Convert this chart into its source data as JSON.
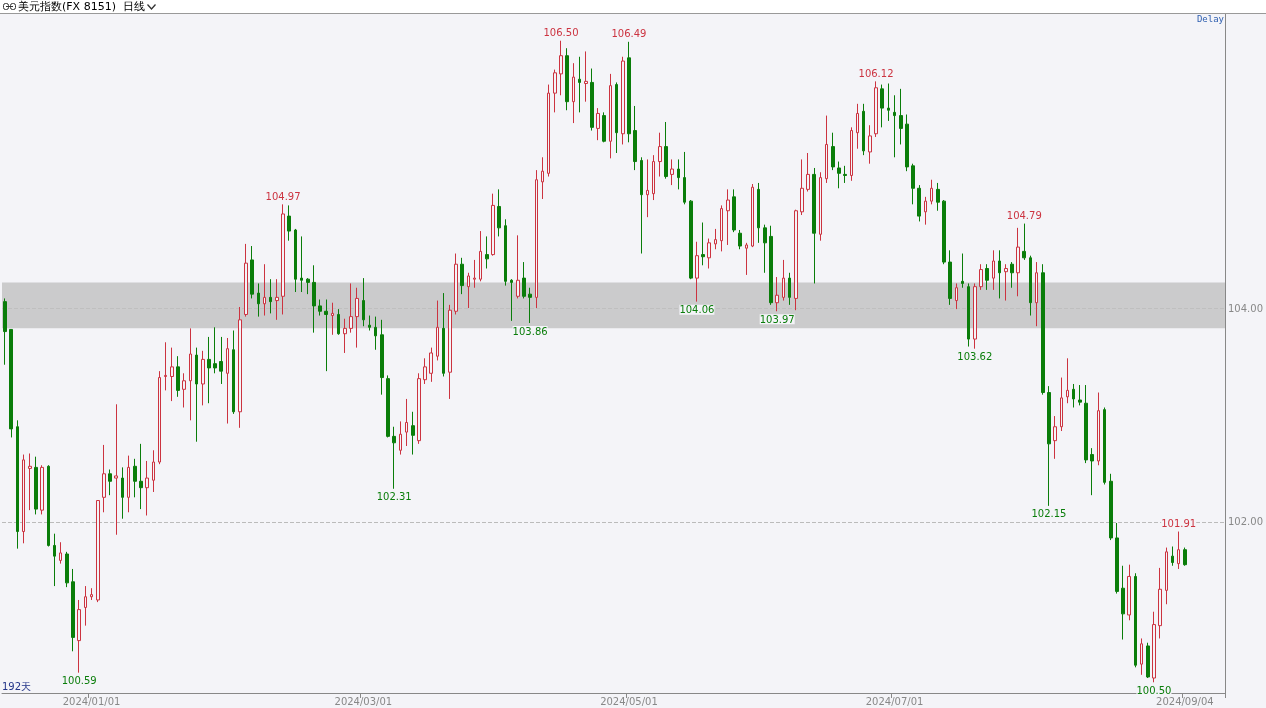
{
  "chart_data": {
    "type": "candlestick",
    "title": "美元指数(FX 8151)  日线",
    "categories": [
      null,
      null,
      null,
      null,
      null,
      null,
      null,
      null,
      null,
      null,
      null,
      null,
      null,
      null,
      "2024/01/01",
      null,
      null,
      null,
      null,
      null,
      null,
      null,
      null,
      null,
      null,
      null,
      null,
      null,
      null,
      null,
      null,
      null,
      null,
      null,
      null,
      null,
      null,
      null,
      null,
      null,
      null,
      null,
      null,
      null,
      null,
      null,
      null,
      null,
      null,
      null,
      null,
      null,
      null,
      null,
      null,
      null,
      null,
      null,
      "2024/03/01",
      null,
      null,
      null,
      null,
      null,
      null,
      null,
      null,
      null,
      null,
      null,
      null,
      null,
      null,
      null,
      null,
      null,
      null,
      null,
      null,
      null,
      null,
      null,
      null,
      null,
      null,
      null,
      null,
      null,
      null,
      null,
      null,
      null,
      null,
      null,
      null,
      null,
      null,
      null,
      null,
      null,
      null,
      "2024/05/01",
      null,
      null,
      null,
      null,
      null,
      null,
      null,
      null,
      null,
      null,
      null,
      null,
      null,
      null,
      null,
      null,
      null,
      null,
      null,
      null,
      null,
      null,
      null,
      null,
      null,
      null,
      null,
      null,
      null,
      null,
      null,
      null,
      null,
      null,
      null,
      null,
      null,
      null,
      null,
      null,
      null,
      null,
      "2024/07/01",
      null,
      null,
      null,
      null,
      null,
      null,
      null,
      null,
      null,
      null,
      null,
      null,
      null,
      null,
      null,
      null,
      null,
      null,
      null,
      null,
      null,
      null,
      null,
      null,
      null,
      null,
      null,
      null,
      null,
      null,
      null,
      null,
      null,
      null,
      null,
      null,
      null,
      null,
      null,
      null,
      null,
      null,
      null,
      null,
      null,
      null,
      "2024/09/04"
    ],
    "ohlc": [
      [
        104.06,
        104.09,
        103.47,
        103.78
      ],
      [
        103.8,
        103.8,
        102.79,
        102.87
      ],
      [
        102.89,
        102.95,
        101.75,
        101.91
      ],
      [
        101.91,
        102.63,
        101.8,
        102.58
      ],
      [
        102.5,
        102.64,
        102.11,
        102.52
      ],
      [
        102.51,
        102.61,
        102.07,
        102.12
      ],
      [
        102.11,
        102.53,
        102.07,
        102.51
      ],
      [
        102.52,
        102.53,
        101.77,
        101.78
      ],
      [
        101.78,
        101.89,
        101.4,
        101.68
      ],
      [
        101.64,
        101.81,
        101.61,
        101.71
      ],
      [
        101.7,
        101.72,
        101.39,
        101.43
      ],
      [
        101.44,
        101.56,
        100.79,
        100.92
      ],
      [
        100.89,
        101.27,
        100.59,
        101.18
      ],
      [
        101.2,
        101.4,
        101.03,
        101.3
      ],
      [
        101.3,
        101.38,
        101.27,
        101.32
      ],
      [
        101.27,
        102.2,
        101.25,
        102.2
      ],
      [
        102.23,
        102.72,
        102.09,
        102.45
      ],
      [
        102.45,
        102.49,
        102.25,
        102.38
      ],
      [
        102.41,
        103.1,
        101.88,
        102.43
      ],
      [
        102.41,
        102.51,
        102.03,
        102.23
      ],
      [
        102.23,
        102.62,
        102.09,
        102.51
      ],
      [
        102.52,
        102.59,
        102.23,
        102.38
      ],
      [
        102.38,
        102.73,
        102.12,
        102.32
      ],
      [
        102.32,
        102.57,
        102.06,
        102.41
      ],
      [
        102.39,
        102.67,
        102.28,
        102.56
      ],
      [
        102.56,
        103.41,
        102.54,
        103.35
      ],
      [
        103.36,
        103.68,
        103.23,
        103.37
      ],
      [
        103.36,
        103.63,
        103.13,
        103.45
      ],
      [
        103.45,
        103.55,
        103.17,
        103.23
      ],
      [
        103.24,
        103.39,
        103.07,
        103.32
      ],
      [
        103.32,
        103.81,
        102.95,
        103.57
      ],
      [
        103.56,
        103.63,
        102.75,
        103.29
      ],
      [
        103.29,
        103.6,
        103.09,
        103.52
      ],
      [
        103.52,
        103.73,
        103.11,
        103.44
      ],
      [
        103.48,
        103.82,
        103.39,
        103.44
      ],
      [
        103.5,
        103.73,
        103.29,
        103.41
      ],
      [
        103.39,
        103.72,
        102.92,
        103.62
      ],
      [
        103.61,
        103.79,
        103.01,
        103.03
      ],
      [
        103.03,
        104.01,
        102.88,
        103.89
      ],
      [
        103.94,
        104.6,
        103.92,
        104.42
      ],
      [
        104.45,
        104.58,
        104.09,
        104.13
      ],
      [
        104.14,
        104.23,
        103.92,
        104.04
      ],
      [
        104.04,
        104.41,
        103.93,
        104.1
      ],
      [
        104.1,
        104.27,
        103.95,
        104.06
      ],
      [
        104.07,
        104.27,
        103.89,
        104.1
      ],
      [
        104.11,
        104.97,
        103.94,
        104.88
      ],
      [
        104.86,
        104.96,
        104.63,
        104.72
      ],
      [
        104.73,
        104.74,
        104.15,
        104.27
      ],
      [
        104.28,
        104.67,
        104.15,
        104.26
      ],
      [
        104.27,
        104.28,
        104.13,
        104.24
      ],
      [
        104.24,
        104.4,
        103.77,
        104.02
      ],
      [
        104.02,
        104.08,
        103.93,
        103.97
      ],
      [
        103.97,
        104.08,
        103.41,
        103.94
      ],
      [
        103.93,
        104.05,
        103.75,
        103.95
      ],
      [
        103.94,
        103.99,
        103.75,
        103.76
      ],
      [
        103.76,
        103.9,
        103.58,
        103.81
      ],
      [
        103.81,
        104.23,
        103.77,
        103.92
      ],
      [
        103.92,
        104.19,
        103.63,
        104.09
      ],
      [
        104.07,
        104.28,
        103.83,
        103.89
      ],
      [
        103.84,
        103.93,
        103.79,
        103.82
      ],
      [
        103.82,
        103.92,
        103.61,
        103.74
      ],
      [
        103.75,
        103.89,
        103.19,
        103.35
      ],
      [
        103.34,
        103.37,
        102.79,
        102.8
      ],
      [
        102.8,
        102.89,
        102.31,
        102.74
      ],
      [
        102.67,
        102.94,
        102.63,
        102.82
      ],
      [
        102.84,
        103.15,
        102.71,
        102.93
      ],
      [
        102.9,
        103.03,
        102.63,
        102.81
      ],
      [
        102.76,
        103.39,
        102.73,
        103.34
      ],
      [
        103.33,
        103.53,
        103.29,
        103.45
      ],
      [
        103.39,
        103.63,
        103.31,
        103.58
      ],
      [
        103.55,
        104.07,
        103.51,
        103.82
      ],
      [
        103.81,
        104.14,
        103.36,
        103.39
      ],
      [
        103.4,
        104.03,
        103.15,
        103.98
      ],
      [
        103.97,
        104.51,
        103.94,
        104.41
      ],
      [
        104.41,
        104.47,
        104.13,
        104.21
      ],
      [
        104.2,
        104.33,
        104.0,
        104.3
      ],
      [
        104.27,
        104.45,
        104.19,
        104.28
      ],
      [
        104.27,
        104.72,
        104.25,
        104.53
      ],
      [
        104.5,
        104.67,
        104.37,
        104.46
      ],
      [
        104.5,
        105.07,
        104.49,
        104.96
      ],
      [
        104.95,
        105.11,
        104.67,
        104.75
      ],
      [
        104.77,
        104.83,
        104.21,
        104.25
      ],
      [
        104.26,
        104.27,
        103.88,
        104.24
      ],
      [
        104.11,
        104.68,
        104.09,
        104.26
      ],
      [
        104.28,
        104.43,
        104.09,
        104.11
      ],
      [
        104.13,
        104.19,
        103.86,
        104.1
      ],
      [
        104.1,
        105.29,
        104.0,
        105.2
      ],
      [
        105.18,
        105.41,
        105.02,
        105.28
      ],
      [
        105.26,
        106.09,
        105.23,
        106.01
      ],
      [
        106.01,
        106.23,
        105.83,
        106.2
      ],
      [
        106.19,
        106.5,
        105.99,
        106.36
      ],
      [
        106.36,
        106.43,
        105.85,
        105.93
      ],
      [
        105.93,
        106.29,
        105.73,
        106.16
      ],
      [
        106.14,
        106.35,
        105.83,
        106.11
      ],
      [
        106.1,
        106.4,
        105.93,
        106.12
      ],
      [
        106.11,
        106.24,
        105.66,
        105.69
      ],
      [
        105.68,
        105.87,
        105.57,
        105.82
      ],
      [
        105.8,
        105.83,
        105.55,
        105.56
      ],
      [
        105.56,
        106.19,
        105.4,
        106.08
      ],
      [
        106.09,
        106.11,
        105.45,
        105.64
      ],
      [
        105.63,
        106.35,
        105.53,
        106.31
      ],
      [
        106.34,
        106.49,
        105.55,
        105.63
      ],
      [
        105.66,
        105.89,
        105.29,
        105.37
      ],
      [
        105.38,
        105.41,
        104.51,
        105.06
      ],
      [
        105.06,
        105.39,
        104.85,
        105.1
      ],
      [
        105.07,
        105.43,
        105.01,
        105.37
      ],
      [
        105.37,
        105.64,
        105.23,
        105.51
      ],
      [
        105.51,
        105.74,
        105.21,
        105.23
      ],
      [
        105.25,
        105.39,
        105.15,
        105.3
      ],
      [
        105.3,
        105.39,
        105.11,
        105.22
      ],
      [
        105.22,
        105.46,
        104.97,
        104.99
      ],
      [
        105.0,
        105.01,
        104.27,
        104.28
      ],
      [
        104.28,
        104.62,
        104.06,
        104.49
      ],
      [
        104.5,
        104.8,
        104.4,
        104.48
      ],
      [
        104.47,
        104.65,
        104.37,
        104.61
      ],
      [
        104.6,
        104.74,
        104.55,
        104.64
      ],
      [
        104.63,
        104.96,
        104.53,
        104.93
      ],
      [
        104.91,
        105.11,
        104.59,
        105.01
      ],
      [
        105.04,
        105.11,
        104.71,
        104.73
      ],
      [
        104.7,
        104.73,
        104.55,
        104.58
      ],
      [
        104.56,
        104.61,
        104.31,
        104.59
      ],
      [
        104.58,
        105.16,
        104.57,
        105.13
      ],
      [
        105.11,
        105.17,
        104.61,
        104.75
      ],
      [
        104.75,
        104.78,
        104.33,
        104.61
      ],
      [
        104.67,
        104.77,
        104.03,
        104.05
      ],
      [
        104.05,
        104.29,
        103.97,
        104.12
      ],
      [
        104.1,
        104.45,
        104.07,
        104.28
      ],
      [
        104.28,
        104.33,
        104.03,
        104.1
      ],
      [
        104.09,
        104.92,
        103.98,
        104.91
      ],
      [
        104.9,
        105.39,
        104.87,
        105.12
      ],
      [
        105.11,
        105.45,
        105.09,
        105.25
      ],
      [
        105.25,
        105.31,
        104.23,
        104.7
      ],
      [
        104.69,
        105.27,
        104.63,
        105.22
      ],
      [
        105.21,
        105.8,
        105.17,
        105.53
      ],
      [
        105.51,
        105.64,
        105.29,
        105.32
      ],
      [
        105.31,
        105.37,
        105.12,
        105.26
      ],
      [
        105.25,
        105.33,
        105.17,
        105.24
      ],
      [
        105.24,
        105.69,
        105.19,
        105.66
      ],
      [
        105.64,
        105.91,
        105.49,
        105.82
      ],
      [
        105.84,
        105.91,
        105.43,
        105.47
      ],
      [
        105.46,
        105.71,
        105.35,
        105.61
      ],
      [
        105.63,
        106.12,
        105.6,
        106.06
      ],
      [
        106.05,
        106.09,
        105.69,
        105.87
      ],
      [
        105.87,
        106.1,
        105.75,
        105.85
      ],
      [
        105.83,
        105.99,
        105.41,
        105.8
      ],
      [
        105.8,
        106.05,
        105.53,
        105.68
      ],
      [
        105.72,
        105.81,
        105.28,
        105.32
      ],
      [
        105.33,
        105.35,
        104.97,
        105.12
      ],
      [
        105.12,
        105.15,
        104.81,
        104.86
      ],
      [
        104.9,
        105.04,
        104.78,
        105.0
      ],
      [
        105.0,
        105.2,
        104.97,
        105.12
      ],
      [
        105.11,
        105.17,
        104.91,
        104.99
      ],
      [
        105.0,
        105.01,
        104.41,
        104.43
      ],
      [
        104.43,
        104.54,
        104.03,
        104.09
      ],
      [
        104.07,
        104.23,
        103.99,
        104.19
      ],
      [
        104.25,
        104.51,
        104.19,
        104.23
      ],
      [
        104.2,
        104.23,
        103.64,
        103.71
      ],
      [
        103.71,
        104.23,
        103.62,
        104.2
      ],
      [
        104.2,
        104.41,
        104.17,
        104.36
      ],
      [
        104.37,
        104.41,
        104.17,
        104.26
      ],
      [
        104.28,
        104.54,
        104.17,
        104.44
      ],
      [
        104.44,
        104.54,
        104.09,
        104.33
      ],
      [
        104.34,
        104.41,
        104.07,
        104.37
      ],
      [
        104.41,
        104.43,
        104.19,
        104.33
      ],
      [
        104.33,
        104.75,
        104.11,
        104.57
      ],
      [
        104.53,
        104.79,
        104.45,
        104.47
      ],
      [
        104.47,
        104.49,
        103.93,
        104.05
      ],
      [
        104.05,
        104.43,
        103.83,
        104.33
      ],
      [
        104.33,
        104.41,
        103.19,
        103.21
      ],
      [
        103.21,
        103.27,
        102.15,
        102.73
      ],
      [
        102.76,
        102.99,
        102.59,
        102.89
      ],
      [
        102.89,
        103.35,
        102.85,
        103.16
      ],
      [
        103.17,
        103.53,
        103.11,
        103.23
      ],
      [
        103.24,
        103.29,
        103.07,
        103.15
      ],
      [
        103.14,
        103.28,
        103.09,
        103.12
      ],
      [
        103.11,
        103.28,
        102.55,
        102.58
      ],
      [
        102.63,
        102.69,
        102.25,
        102.57
      ],
      [
        102.57,
        103.21,
        102.53,
        103.04
      ],
      [
        103.05,
        103.07,
        102.35,
        102.37
      ],
      [
        102.38,
        102.45,
        101.83,
        101.85
      ],
      [
        101.85,
        101.99,
        101.33,
        101.35
      ],
      [
        101.38,
        101.59,
        100.9,
        101.14
      ],
      [
        101.13,
        101.6,
        101.08,
        101.49
      ],
      [
        101.49,
        101.52,
        100.64,
        100.66
      ],
      [
        100.67,
        100.91,
        100.57,
        100.86
      ],
      [
        100.84,
        100.87,
        100.54,
        100.55
      ],
      [
        100.54,
        101.16,
        100.5,
        101.04
      ],
      [
        101.03,
        101.57,
        100.91,
        101.37
      ],
      [
        101.36,
        101.76,
        101.23,
        101.72
      ],
      [
        101.68,
        101.77,
        101.59,
        101.62
      ],
      [
        101.61,
        101.91,
        101.56,
        101.74
      ],
      [
        101.74,
        101.76,
        101.59,
        101.6
      ]
    ],
    "colors": [
      "#0a7d0a",
      "#0a7d0a",
      "#0a7d0a",
      "#cc3340",
      "#cc3340",
      "#0a7d0a",
      "#cc3340",
      "#0a7d0a",
      "#0a7d0a",
      "#cc3340",
      "#0a7d0a",
      "#0a7d0a",
      "#cc3340",
      "#cc3340",
      "#cc3340",
      "#cc3340",
      "#cc3340",
      "#0a7d0a",
      "#cc3340",
      "#0a7d0a",
      "#cc3340",
      "#0a7d0a",
      "#0a7d0a",
      "#cc3340",
      "#cc3340",
      "#cc3340",
      "#cc3340",
      "#cc3340",
      "#0a7d0a",
      "#cc3340",
      "#cc3340",
      "#0a7d0a",
      "#cc3340",
      "#0a7d0a",
      "#0a7d0a",
      "#0a7d0a",
      "#cc3340",
      "#0a7d0a",
      "#cc3340",
      "#cc3340",
      "#0a7d0a",
      "#0a7d0a",
      "#cc3340",
      "#0a7d0a",
      "#cc3340",
      "#cc3340",
      "#0a7d0a",
      "#0a7d0a",
      "#0a7d0a",
      "#0a7d0a",
      "#0a7d0a",
      "#0a7d0a",
      "#0a7d0a",
      "#cc3340",
      "#0a7d0a",
      "#cc3340",
      "#cc3340",
      "#cc3340",
      "#0a7d0a",
      "#0a7d0a",
      "#0a7d0a",
      "#0a7d0a",
      "#0a7d0a",
      "#0a7d0a",
      "#cc3340",
      "#cc3340",
      "#0a7d0a",
      "#cc3340",
      "#cc3340",
      "#cc3340",
      "#cc3340",
      "#0a7d0a",
      "#cc3340",
      "#cc3340",
      "#0a7d0a",
      "#cc3340",
      "#cc3340",
      "#cc3340",
      "#0a7d0a",
      "#cc3340",
      "#0a7d0a",
      "#0a7d0a",
      "#0a7d0a",
      "#cc3340",
      "#0a7d0a",
      "#0a7d0a",
      "#cc3340",
      "#cc3340",
      "#cc3340",
      "#cc3340",
      "#cc3340",
      "#0a7d0a",
      "#cc3340",
      "#0a7d0a",
      "#cc3340",
      "#0a7d0a",
      "#cc3340",
      "#0a7d0a",
      "#cc3340",
      "#0a7d0a",
      "#cc3340",
      "#0a7d0a",
      "#0a7d0a",
      "#0a7d0a",
      "#cc3340",
      "#cc3340",
      "#cc3340",
      "#0a7d0a",
      "#cc3340",
      "#0a7d0a",
      "#0a7d0a",
      "#0a7d0a",
      "#cc3340",
      "#0a7d0a",
      "#cc3340",
      "#cc3340",
      "#cc3340",
      "#cc3340",
      "#0a7d0a",
      "#0a7d0a",
      "#cc3340",
      "#cc3340",
      "#0a7d0a",
      "#0a7d0a",
      "#0a7d0a",
      "#cc3340",
      "#cc3340",
      "#0a7d0a",
      "#cc3340",
      "#cc3340",
      "#cc3340",
      "#0a7d0a",
      "#cc3340",
      "#cc3340",
      "#0a7d0a",
      "#0a7d0a",
      "#0a7d0a",
      "#cc3340",
      "#cc3340",
      "#0a7d0a",
      "#cc3340",
      "#cc3340",
      "#0a7d0a",
      "#0a7d0a",
      "#0a7d0a",
      "#0a7d0a",
      "#0a7d0a",
      "#0a7d0a",
      "#0a7d0a",
      "#cc3340",
      "#cc3340",
      "#0a7d0a",
      "#0a7d0a",
      "#0a7d0a",
      "#cc3340",
      "#0a7d0a",
      "#0a7d0a",
      "#cc3340",
      "#cc3340",
      "#0a7d0a",
      "#cc3340",
      "#0a7d0a",
      "#cc3340",
      "#0a7d0a",
      "#cc3340",
      "#0a7d0a",
      "#0a7d0a",
      "#cc3340",
      "#0a7d0a",
      "#0a7d0a",
      "#cc3340",
      "#cc3340",
      "#cc3340",
      "#0a7d0a",
      "#0a7d0a",
      "#0a7d0a",
      "#0a7d0a",
      "#cc3340",
      "#0a7d0a",
      "#0a7d0a",
      "#0a7d0a",
      "#0a7d0a",
      "#cc3340",
      "#0a7d0a",
      "#cc3340",
      "#0a7d0a",
      "#cc3340",
      "#cc3340",
      "#cc3340",
      "#0a7d0a",
      "#cc3340",
      "#0a7d0a"
    ],
    "ylim": [
      100.4,
      106.75
    ],
    "yticks": [
      {
        "value": 102,
        "label": "102.00"
      },
      {
        "value": 104,
        "label": "104.00"
      }
    ],
    "grid": "y",
    "bands": [
      {
        "axis": "y",
        "from": 103.81,
        "to": 104.24,
        "color": "#c0c0c0"
      }
    ],
    "annotations": [
      "Delay",
      "192天",
      {
        "text": "104.97",
        "y": 104.97
      },
      {
        "text": "100.59",
        "y": 100.59
      },
      {
        "text": "102.31",
        "y": 102.31
      },
      {
        "text": "103.86",
        "y": 103.86
      },
      {
        "text": "106.50",
        "y": 106.5
      },
      {
        "text": "106.49",
        "y": 106.49
      },
      {
        "text": "104.06",
        "y": 104.06
      },
      {
        "text": "103.97",
        "y": 103.97
      },
      {
        "text": "106.12",
        "y": 106.12
      },
      {
        "text": "104.79",
        "y": 104.79
      },
      {
        "text": "103.62",
        "y": 103.62
      },
      {
        "text": "102.15",
        "y": 102.15
      },
      {
        "text": "101.91",
        "y": 101.91
      },
      {
        "text": "100.50",
        "y": 100.5
      }
    ]
  }
}
